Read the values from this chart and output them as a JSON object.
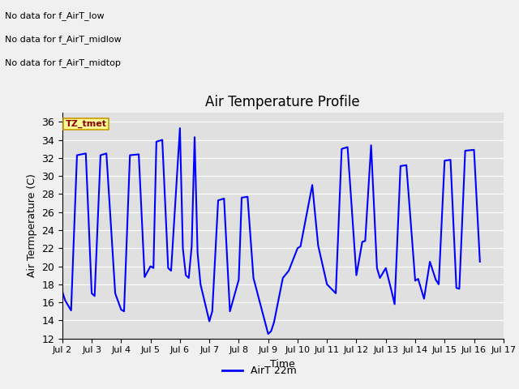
{
  "title": "Air Temperature Profile",
  "xlabel": "Time",
  "ylabel": "Air Termperature (C)",
  "ylim": [
    12,
    37
  ],
  "yticks": [
    12,
    14,
    16,
    18,
    20,
    22,
    24,
    26,
    28,
    30,
    32,
    34,
    36
  ],
  "line_color": "blue",
  "line_label": "AirT 22m",
  "plot_bg_color": "#e0e0e0",
  "fig_bg_color": "#f0f0f0",
  "annotations_text": [
    "No data for f_AirT_low",
    "No data for f_AirT_midlow",
    "No data for f_AirT_midtop"
  ],
  "tz_label": "TZ_tmet",
  "x_tick_labels": [
    "Jul 2",
    "Jul 3",
    "Jul 4",
    "Jul 5",
    "Jul 6",
    "Jul 7",
    "Jul 8",
    "Jul 9",
    "Jul 10",
    "Jul 11",
    "Jul 12",
    "Jul 13",
    "Jul 14",
    "Jul 15",
    "Jul 16",
    "Jul 17"
  ],
  "x_values": [
    2,
    3,
    4,
    5,
    6,
    7,
    8,
    9,
    10,
    11,
    12,
    13,
    14,
    15,
    16,
    17
  ],
  "y_data": [
    [
      2.0,
      17.2
    ],
    [
      2.1,
      16.2
    ],
    [
      2.3,
      15.1
    ],
    [
      2.5,
      32.3
    ],
    [
      2.8,
      32.5
    ],
    [
      3.0,
      17.0
    ],
    [
      3.1,
      16.7
    ],
    [
      3.3,
      32.3
    ],
    [
      3.5,
      32.5
    ],
    [
      3.8,
      17.0
    ],
    [
      4.0,
      15.2
    ],
    [
      4.1,
      15.0
    ],
    [
      4.3,
      32.3
    ],
    [
      4.6,
      32.4
    ],
    [
      4.8,
      18.8
    ],
    [
      5.0,
      20.0
    ],
    [
      5.1,
      19.8
    ],
    [
      5.2,
      33.8
    ],
    [
      5.4,
      34.0
    ],
    [
      5.6,
      19.8
    ],
    [
      5.7,
      19.5
    ],
    [
      6.0,
      35.3
    ],
    [
      6.1,
      22.0
    ],
    [
      6.2,
      19.0
    ],
    [
      6.3,
      18.7
    ],
    [
      6.4,
      22.2
    ],
    [
      6.5,
      34.3
    ],
    [
      6.6,
      21.5
    ],
    [
      6.7,
      18.0
    ],
    [
      7.0,
      13.9
    ],
    [
      7.1,
      15.0
    ],
    [
      7.3,
      27.3
    ],
    [
      7.5,
      27.5
    ],
    [
      7.7,
      15.0
    ],
    [
      8.0,
      18.5
    ],
    [
      8.1,
      27.6
    ],
    [
      8.3,
      27.7
    ],
    [
      8.5,
      18.7
    ],
    [
      9.0,
      12.5
    ],
    [
      9.1,
      12.8
    ],
    [
      9.2,
      13.8
    ],
    [
      9.5,
      18.7
    ],
    [
      9.7,
      19.5
    ],
    [
      10.0,
      22.0
    ],
    [
      10.1,
      22.2
    ],
    [
      10.5,
      29.0
    ],
    [
      10.7,
      22.3
    ],
    [
      11.0,
      18.0
    ],
    [
      11.3,
      17.0
    ],
    [
      11.5,
      33.0
    ],
    [
      11.7,
      33.2
    ],
    [
      12.0,
      19.0
    ],
    [
      12.2,
      22.7
    ],
    [
      12.3,
      22.8
    ],
    [
      12.5,
      33.4
    ],
    [
      12.7,
      19.8
    ],
    [
      12.8,
      18.7
    ],
    [
      13.0,
      19.8
    ],
    [
      13.2,
      17.2
    ],
    [
      13.3,
      15.8
    ],
    [
      13.5,
      31.1
    ],
    [
      13.7,
      31.2
    ],
    [
      14.0,
      18.4
    ],
    [
      14.1,
      18.6
    ],
    [
      14.3,
      16.4
    ],
    [
      14.5,
      20.5
    ],
    [
      14.7,
      18.5
    ],
    [
      14.8,
      18.0
    ],
    [
      15.0,
      31.7
    ],
    [
      15.2,
      31.8
    ],
    [
      15.4,
      17.6
    ],
    [
      15.5,
      17.5
    ],
    [
      15.7,
      32.8
    ],
    [
      16.0,
      32.9
    ],
    [
      16.2,
      20.5
    ]
  ]
}
